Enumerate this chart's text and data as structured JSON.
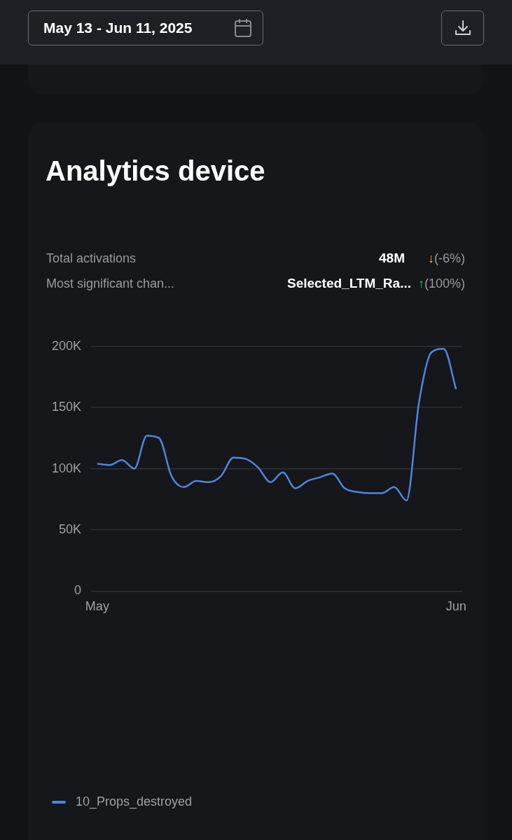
{
  "chart_data": {
    "type": "line",
    "title": "Analytics device",
    "annotations": [
      "May 13 - Jun 11, 2025",
      "Total activations",
      "48M",
      "↓(-6%)",
      "Most significant chan...",
      "Selected_LTM_Ra...",
      "↑(100%)"
    ],
    "categories": [
      "May",
      null,
      null,
      null,
      null,
      null,
      null,
      null,
      null,
      null,
      null,
      null,
      null,
      null,
      null,
      null,
      null,
      null,
      null,
      null,
      null,
      null,
      null,
      null,
      null,
      null,
      null,
      null,
      null,
      "Jun"
    ],
    "series": [
      {
        "name": "10_Props_destroyed",
        "color": "#4f86e0",
        "values": [
          104000,
          103000,
          107000,
          100000,
          127000,
          125000,
          94000,
          85000,
          90000,
          89000,
          94000,
          109000,
          108000,
          101000,
          89000,
          97000,
          84000,
          90000,
          93000,
          96000,
          84000,
          81000,
          80000,
          80000,
          85000,
          74000,
          154000,
          195000,
          198000,
          165000
        ]
      }
    ],
    "ylim": [
      0,
      200000
    ],
    "yticks": [
      {
        "value": 0,
        "label": "0"
      },
      {
        "value": 50000,
        "label": "50K"
      },
      {
        "value": 100000,
        "label": "100K"
      },
      {
        "value": 150000,
        "label": "150K"
      },
      {
        "value": 200000,
        "label": "200K"
      }
    ],
    "grid": "y",
    "legend": "bottom left",
    "marker": "none",
    "line_style": "solid"
  }
}
